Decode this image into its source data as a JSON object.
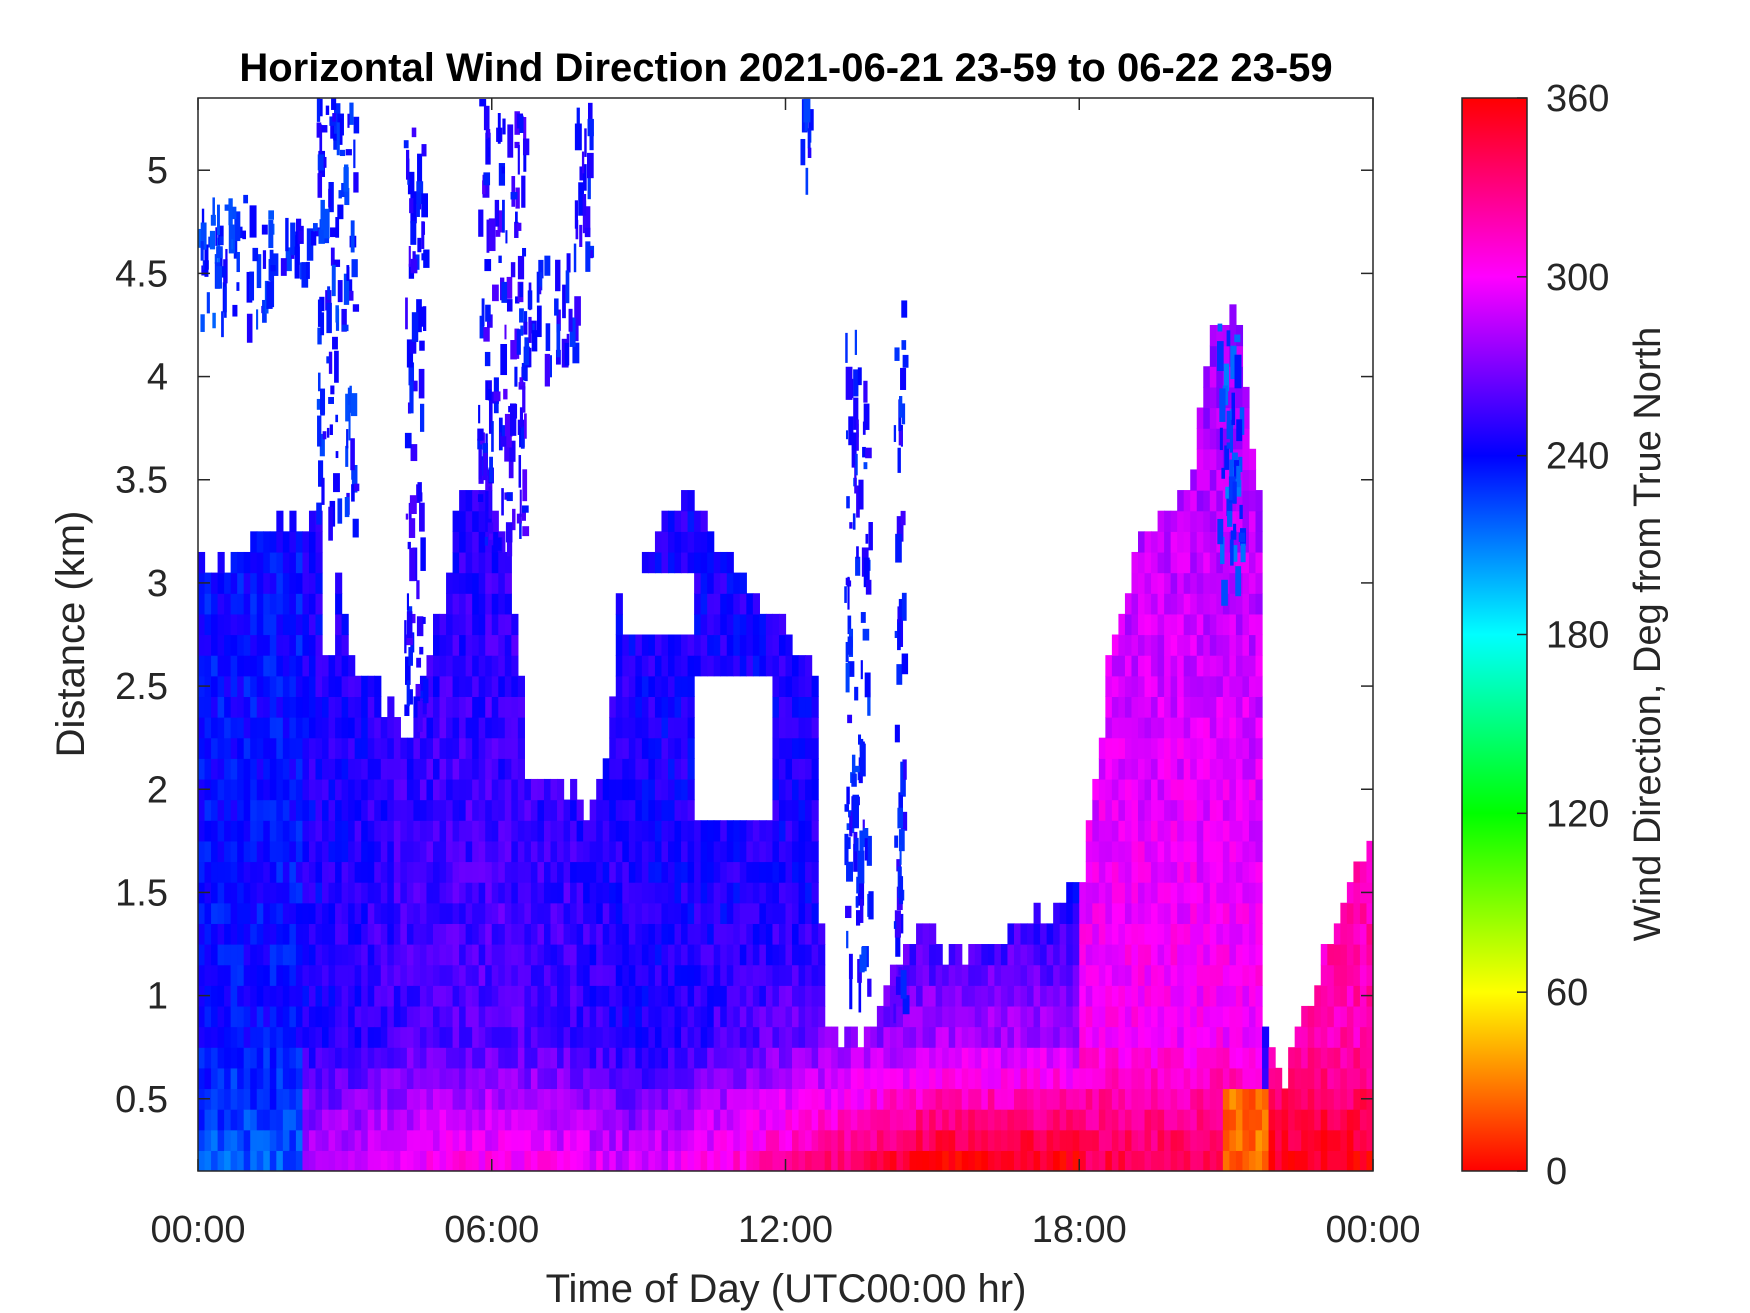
{
  "chart_data": {
    "type": "heatmap",
    "title": "Horizontal Wind Direction 2021-06-21 23-59 to 06-22 23-59",
    "xlabel": "Time of Day (UTC00:00 hr)",
    "ylabel": "Distance (km)",
    "colorbar_label": "Wind Direction, Deg from True North",
    "xlim": [
      0,
      24
    ],
    "ylim": [
      0.15,
      5.35
    ],
    "clim": [
      0,
      360
    ],
    "x_ticks": [
      {
        "value": 0,
        "label": "00:00"
      },
      {
        "value": 6,
        "label": "06:00"
      },
      {
        "value": 12,
        "label": "12:00"
      },
      {
        "value": 18,
        "label": "18:00"
      },
      {
        "value": 24,
        "label": "00:00"
      }
    ],
    "y_ticks": [
      {
        "value": 0.5,
        "label": "0.5"
      },
      {
        "value": 1,
        "label": "1"
      },
      {
        "value": 1.5,
        "label": "1.5"
      },
      {
        "value": 2,
        "label": "2"
      },
      {
        "value": 2.5,
        "label": "2.5"
      },
      {
        "value": 3,
        "label": "3"
      },
      {
        "value": 3.5,
        "label": "3.5"
      },
      {
        "value": 4,
        "label": "4"
      },
      {
        "value": 4.5,
        "label": "4.5"
      },
      {
        "value": 5,
        "label": "5"
      }
    ],
    "colorbar_ticks": [
      {
        "value": 0,
        "label": "0"
      },
      {
        "value": 60,
        "label": "60"
      },
      {
        "value": 120,
        "label": "120"
      },
      {
        "value": 180,
        "label": "180"
      },
      {
        "value": 240,
        "label": "240"
      },
      {
        "value": 300,
        "label": "300"
      },
      {
        "value": 360,
        "label": "360"
      }
    ],
    "colormap": "hsv",
    "colormap_stops": [
      "#ff0000",
      "#ffff00",
      "#00ff00",
      "#00ffff",
      "#0000ff",
      "#ff00ff",
      "#ff0000"
    ],
    "missing_color": "#ffffff",
    "data_top_km": [
      {
        "t": 0.0,
        "km": 3.15
      },
      {
        "t": 0.7,
        "km": 3.1
      },
      {
        "t": 1.4,
        "km": 3.25
      },
      {
        "t": 2.0,
        "km": 3.3
      },
      {
        "t": 2.7,
        "km": 3.3
      },
      {
        "t": 3.2,
        "km": 2.6
      },
      {
        "t": 3.5,
        "km": 2.5
      },
      {
        "t": 4.3,
        "km": 2.3
      },
      {
        "t": 4.7,
        "km": 2.6
      },
      {
        "t": 5.3,
        "km": 3.3
      },
      {
        "t": 5.8,
        "km": 3.7
      },
      {
        "t": 6.3,
        "km": 3.2
      },
      {
        "t": 6.6,
        "km": 2.6
      },
      {
        "t": 7.0,
        "km": 2.2
      },
      {
        "t": 7.5,
        "km": 2.0
      },
      {
        "t": 8.0,
        "km": 1.9
      },
      {
        "t": 8.4,
        "km": 2.2
      },
      {
        "t": 8.6,
        "km": 2.9
      },
      {
        "t": 9.5,
        "km": 3.3
      },
      {
        "t": 10.0,
        "km": 3.4
      },
      {
        "t": 11.0,
        "km": 3.1
      },
      {
        "t": 12.0,
        "km": 2.8
      },
      {
        "t": 12.6,
        "km": 2.5
      },
      {
        "t": 12.8,
        "km": 0.8
      },
      {
        "t": 13.6,
        "km": 0.8
      },
      {
        "t": 14.0,
        "km": 1.0
      },
      {
        "t": 14.6,
        "km": 1.3
      },
      {
        "t": 15.5,
        "km": 1.2
      },
      {
        "t": 16.5,
        "km": 1.3
      },
      {
        "t": 17.3,
        "km": 1.4
      },
      {
        "t": 17.8,
        "km": 1.5
      },
      {
        "t": 18.1,
        "km": 1.6
      },
      {
        "t": 18.6,
        "km": 2.6
      },
      {
        "t": 19.2,
        "km": 3.2
      },
      {
        "t": 19.8,
        "km": 3.3
      },
      {
        "t": 20.3,
        "km": 3.5
      },
      {
        "t": 20.6,
        "km": 4.1
      },
      {
        "t": 21.2,
        "km": 4.4
      },
      {
        "t": 21.7,
        "km": 3.3
      },
      {
        "t": 21.8,
        "km": 0.8
      },
      {
        "t": 22.2,
        "km": 0.6
      },
      {
        "t": 22.5,
        "km": 0.9
      },
      {
        "t": 23.1,
        "km": 1.2
      },
      {
        "t": 23.6,
        "km": 1.6
      },
      {
        "t": 24.0,
        "km": 1.85
      }
    ],
    "data_gaps": [
      {
        "t_start": 2.5,
        "t_end": 2.8,
        "km_start": 2.6,
        "km_end": 3.3
      },
      {
        "t_start": 3.6,
        "t_end": 4.3,
        "km_start": 2.5,
        "km_end": 5.35
      },
      {
        "t_start": 4.5,
        "t_end": 5.8,
        "km_start": 3.4,
        "km_end": 5.35
      },
      {
        "t_start": 6.7,
        "t_end": 7.6,
        "km_start": 2.0,
        "km_end": 2.9
      },
      {
        "t_start": 7.3,
        "t_end": 8.3,
        "km_start": 3.2,
        "km_end": 5.35
      },
      {
        "t_start": 8.7,
        "t_end": 10.1,
        "km_start": 2.7,
        "km_end": 3.0
      },
      {
        "t_start": 10.2,
        "t_end": 11.7,
        "km_start": 1.85,
        "km_end": 2.5
      }
    ],
    "upper_patches": [
      {
        "t_start": 0.0,
        "t_end": 1.5,
        "km_start": 4.3,
        "km_end": 4.9,
        "deg": 232
      },
      {
        "t_start": 1.4,
        "t_end": 2.5,
        "km_start": 4.5,
        "km_end": 4.8,
        "deg": 238
      },
      {
        "t_start": 2.4,
        "t_end": 3.2,
        "km_start": 3.3,
        "km_end": 5.35,
        "deg": 236
      },
      {
        "t_start": 4.2,
        "t_end": 4.6,
        "km_start": 2.4,
        "km_end": 5.3,
        "deg": 244
      },
      {
        "t_start": 5.7,
        "t_end": 6.7,
        "km_start": 3.2,
        "km_end": 5.35,
        "deg": 246
      },
      {
        "t_start": 6.5,
        "t_end": 7.7,
        "km_start": 4.1,
        "km_end": 4.6,
        "deg": 240
      },
      {
        "t_start": 7.6,
        "t_end": 8.0,
        "km_start": 4.6,
        "km_end": 5.35,
        "deg": 242
      },
      {
        "t_start": 12.3,
        "t_end": 12.5,
        "km_start": 5.0,
        "km_end": 5.35,
        "deg": 238
      },
      {
        "t_start": 13.2,
        "t_end": 13.7,
        "km_start": 1.0,
        "km_end": 4.3,
        "deg": 238
      },
      {
        "t_start": 14.2,
        "t_end": 14.4,
        "km_start": 0.9,
        "km_end": 4.4,
        "deg": 240
      },
      {
        "t_start": 20.8,
        "t_end": 21.3,
        "km_start": 3.0,
        "km_end": 4.3,
        "deg": 222
      }
    ]
  }
}
